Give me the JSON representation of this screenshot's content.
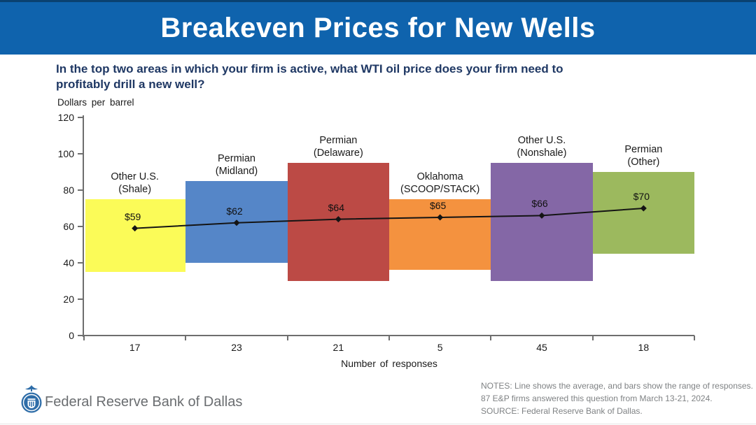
{
  "header": {
    "title": "Breakeven Prices for New Wells",
    "banner_color": "#0F63AD"
  },
  "question": {
    "lines": [
      "In the top two areas in which your firm is active, what WTI oil price does your firm need to",
      "profitably drill a new well?"
    ]
  },
  "chart_data": {
    "type": "bar",
    "subtype": "floating-range-bars-with-average-line",
    "axis_note": "Dollars per barrel",
    "xlabel": "Number of responses",
    "ylim": [
      0,
      120
    ],
    "yticks": [
      0,
      20,
      40,
      60,
      80,
      100,
      120
    ],
    "grid": false,
    "categories": [
      "Other U.S. (Shale)",
      "Permian (Midland)",
      "Permian (Delaware)",
      "Oklahoma (SCOOP/STACK)",
      "Other U.S. (Nonshale)",
      "Permian (Other)"
    ],
    "category_label_lines": [
      [
        "Other U.S.",
        "(Shale)"
      ],
      [
        "Permian",
        "(Midland)"
      ],
      [
        "Permian",
        "(Delaware)"
      ],
      [
        "Oklahoma",
        "(SCOOP/STACK)"
      ],
      [
        "Other U.S.",
        "(Nonshale)"
      ],
      [
        "Permian",
        "(Other)"
      ]
    ],
    "series": [
      {
        "name": "Range of responses",
        "ranges": [
          [
            35,
            75
          ],
          [
            40,
            85
          ],
          [
            30,
            95
          ],
          [
            36,
            75
          ],
          [
            30,
            95
          ],
          [
            45,
            90
          ]
        ],
        "colors": [
          "#FBFB58",
          "#5586C8",
          "#BC4A45",
          "#F4923F",
          "#8467A6",
          "#9CB95E"
        ]
      },
      {
        "name": "Average",
        "values": [
          59,
          62,
          64,
          65,
          66,
          70
        ],
        "labels": [
          "$59",
          "$62",
          "$64",
          "$65",
          "$66",
          "$70"
        ],
        "color": "#141414"
      }
    ],
    "responses": [
      17,
      23,
      21,
      5,
      45,
      18
    ]
  },
  "footer": {
    "logo": "federal-reserve-seal-icon",
    "brand": "Federal Reserve Bank of Dallas",
    "notes": [
      "NOTES: Line shows the average, and bars show the range of responses.",
      "87 E&P firms answered this question from March 13-21, 2024.",
      "SOURCE: Federal Reserve Bank of Dallas."
    ]
  }
}
